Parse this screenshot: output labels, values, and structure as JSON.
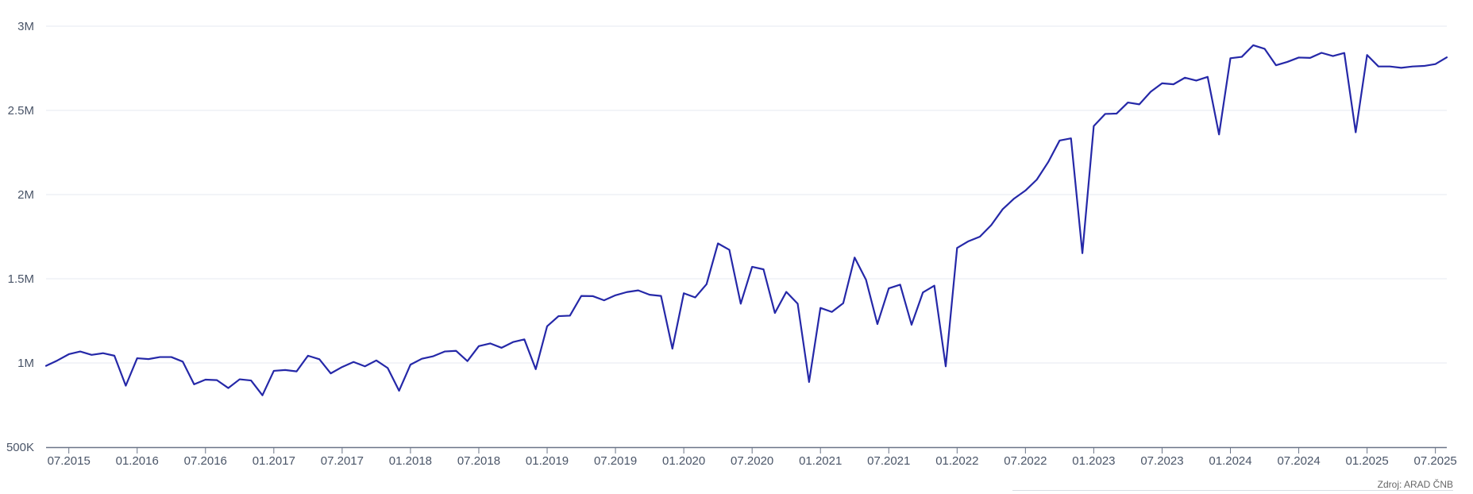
{
  "chart_data": {
    "type": "line",
    "title": "",
    "xlabel": "",
    "ylabel": "",
    "x_ticks": [
      "07.2015",
      "01.2016",
      "07.2016",
      "01.2017",
      "07.2017",
      "01.2018",
      "07.2018",
      "01.2019",
      "07.2019",
      "01.2020",
      "07.2020",
      "01.2021",
      "07.2021",
      "01.2022",
      "07.2022",
      "01.2023",
      "07.2023",
      "01.2024",
      "07.2024",
      "01.2025",
      "07.2025"
    ],
    "x_range": [
      "05.2015",
      "08.2025"
    ],
    "y_ticks": [
      500000,
      1000000,
      1500000,
      2000000,
      2500000,
      3000000
    ],
    "y_tick_labels": [
      "500K",
      "1M",
      "1.5M",
      "2M",
      "2.5M",
      "3M"
    ],
    "ylim": [
      500000,
      3000000
    ],
    "grid": true,
    "legend": "none",
    "series": [
      {
        "color": "#2528a8",
        "x": [
          "05.2015",
          "06.2015",
          "07.2015",
          "08.2015",
          "09.2015",
          "10.2015",
          "11.2015",
          "12.2015",
          "01.2016",
          "02.2016",
          "03.2016",
          "04.2016",
          "05.2016",
          "06.2016",
          "07.2016",
          "08.2016",
          "09.2016",
          "10.2016",
          "11.2016",
          "12.2016",
          "01.2017",
          "02.2017",
          "03.2017",
          "04.2017",
          "05.2017",
          "06.2017",
          "07.2017",
          "08.2017",
          "09.2017",
          "10.2017",
          "11.2017",
          "12.2017",
          "01.2018",
          "02.2018",
          "03.2018",
          "04.2018",
          "05.2018",
          "06.2018",
          "07.2018",
          "08.2018",
          "09.2018",
          "10.2018",
          "11.2018",
          "12.2018",
          "01.2019",
          "02.2019",
          "03.2019",
          "04.2019",
          "05.2019",
          "06.2019",
          "07.2019",
          "08.2019",
          "09.2019",
          "10.2019",
          "11.2019",
          "12.2019",
          "01.2020",
          "02.2020",
          "03.2020",
          "04.2020",
          "05.2020",
          "06.2020",
          "07.2020",
          "08.2020",
          "09.2020",
          "10.2020",
          "11.2020",
          "12.2020",
          "01.2021",
          "02.2021",
          "03.2021",
          "04.2021",
          "05.2021",
          "06.2021",
          "07.2021",
          "08.2021",
          "09.2021",
          "10.2021",
          "11.2021",
          "12.2021",
          "01.2022",
          "02.2022",
          "03.2022",
          "04.2022",
          "05.2022",
          "06.2022",
          "07.2022",
          "08.2022",
          "09.2022",
          "10.2022",
          "11.2022",
          "12.2022",
          "01.2023",
          "02.2023",
          "03.2023",
          "04.2023",
          "05.2023",
          "06.2023",
          "07.2023",
          "08.2023",
          "09.2023",
          "10.2023",
          "11.2023",
          "12.2023",
          "01.2024",
          "02.2024",
          "03.2024",
          "04.2024",
          "05.2024",
          "06.2024",
          "07.2024",
          "08.2024",
          "09.2024",
          "10.2024",
          "11.2024",
          "12.2024",
          "01.2025",
          "02.2025",
          "03.2025",
          "04.2025",
          "05.2025",
          "06.2025",
          "07.2025",
          "08.2025"
        ],
        "values": [
          983000,
          1015000,
          1052000,
          1068000,
          1048000,
          1058000,
          1043000,
          865000,
          1028000,
          1023000,
          1035000,
          1035000,
          1008000,
          873000,
          901000,
          898000,
          851000,
          903000,
          896000,
          808000,
          953000,
          958000,
          950000,
          1043000,
          1022000,
          938000,
          976000,
          1006000,
          980000,
          1015000,
          970000,
          835000,
          990000,
          1025000,
          1040000,
          1068000,
          1072000,
          1011000,
          1100000,
          1116000,
          1090000,
          1124000,
          1140000,
          963000,
          1218000,
          1278000,
          1281000,
          1398000,
          1397000,
          1372000,
          1402000,
          1421000,
          1431000,
          1405000,
          1398000,
          1085000,
          1414000,
          1389000,
          1468000,
          1710000,
          1672000,
          1352000,
          1571000,
          1556000,
          1297000,
          1422000,
          1352000,
          887000,
          1327000,
          1303000,
          1355000,
          1626000,
          1494000,
          1231000,
          1443000,
          1465000,
          1227000,
          1419000,
          1459000,
          980000,
          1683000,
          1723000,
          1750000,
          1819000,
          1913000,
          1976000,
          2024000,
          2089000,
          2193000,
          2321000,
          2334000,
          1652000,
          2407000,
          2479000,
          2481000,
          2547000,
          2536000,
          2611000,
          2661000,
          2655000,
          2694000,
          2677000,
          2699000,
          2357000,
          2810000,
          2818000,
          2887000,
          2866000,
          2768000,
          2788000,
          2814000,
          2812000,
          2842000,
          2823000,
          2841000,
          2370000,
          2829000,
          2761000,
          2761000,
          2753000,
          2761000,
          2764000,
          2775000,
          2815000
        ]
      }
    ]
  },
  "source": {
    "text": "Zdroj: ARAD ČNB"
  },
  "colors": {
    "line": "#2528a8",
    "grid": "#e6e9f2",
    "axis": "#6b7588",
    "label": "#4a5568"
  }
}
